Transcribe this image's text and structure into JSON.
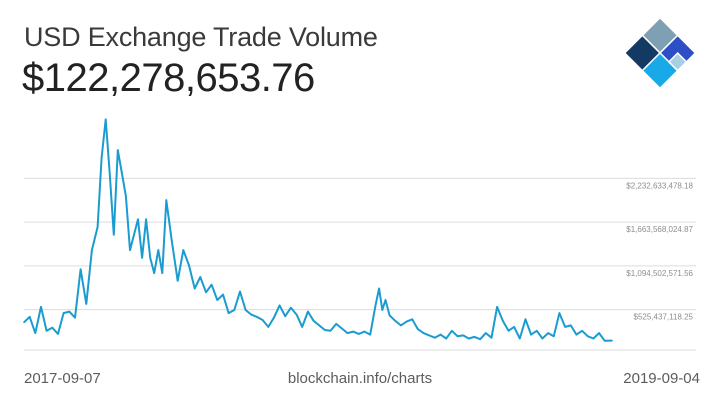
{
  "header": {
    "title": "USD Exchange Trade Volume",
    "current_value": "$122,278,653.76"
  },
  "footer": {
    "start_date": "2017-09-07",
    "source": "blockchain.info/charts",
    "end_date": "2019-09-04"
  },
  "colors": {
    "line": "#1b9cd0",
    "grid": "#dcdcdc",
    "logo_dark": "#123a63",
    "logo_gray": "#7f9fb2",
    "logo_blue": "#2c4fc5",
    "logo_cyan": "#18a9e8",
    "logo_light": "#a8cfe4"
  },
  "logo": {
    "icon": "blockchain-logo-icon"
  },
  "chart_data": {
    "type": "line",
    "title": "USD Exchange Trade Volume",
    "xlabel": "",
    "ylabel": "",
    "x_range": [
      "2017-09-07",
      "2019-09-04"
    ],
    "ylim": [
      0,
      3200000000
    ],
    "grid": true,
    "y_ticks": [
      {
        "value": 525437118.25,
        "label": "$525,437,118.25"
      },
      {
        "value": 1094502571.56,
        "label": "$1,094,502,571.56"
      },
      {
        "value": 1663568024.87,
        "label": "$1,663,568,024.87"
      },
      {
        "value": 2232633478.18,
        "label": "$2,232,633,478.18"
      }
    ],
    "series": [
      {
        "x": [
          "2017-09-07",
          "2017-09-14",
          "2017-09-21",
          "2017-09-28",
          "2017-10-05",
          "2017-10-12",
          "2017-10-19",
          "2017-10-26",
          "2017-11-02",
          "2017-11-09",
          "2017-11-16",
          "2017-11-23",
          "2017-11-30",
          "2017-12-07",
          "2017-12-12",
          "2017-12-17",
          "2017-12-22",
          "2017-12-27",
          "2018-01-01",
          "2018-01-06",
          "2018-01-11",
          "2018-01-16",
          "2018-01-21",
          "2018-01-26",
          "2018-01-31",
          "2018-02-05",
          "2018-02-10",
          "2018-02-15",
          "2018-02-20",
          "2018-02-25",
          "2018-03-02",
          "2018-03-09",
          "2018-03-16",
          "2018-03-23",
          "2018-03-30",
          "2018-04-06",
          "2018-04-13",
          "2018-04-20",
          "2018-04-27",
          "2018-05-04",
          "2018-05-11",
          "2018-05-18",
          "2018-05-25",
          "2018-06-01",
          "2018-06-08",
          "2018-06-15",
          "2018-06-22",
          "2018-06-29",
          "2018-07-06",
          "2018-07-13",
          "2018-07-20",
          "2018-07-27",
          "2018-08-03",
          "2018-08-10",
          "2018-08-17",
          "2018-08-24",
          "2018-08-31",
          "2018-09-07",
          "2018-09-14",
          "2018-09-21",
          "2018-09-28",
          "2018-10-05",
          "2018-10-12",
          "2018-10-19",
          "2018-10-26",
          "2018-11-02",
          "2018-11-09",
          "2018-11-16",
          "2018-11-20",
          "2018-11-24",
          "2018-11-28",
          "2018-12-03",
          "2018-12-10",
          "2018-12-17",
          "2018-12-24",
          "2018-12-31",
          "2019-01-07",
          "2019-01-14",
          "2019-01-21",
          "2019-01-28",
          "2019-02-04",
          "2019-02-11",
          "2019-02-18",
          "2019-02-25",
          "2019-03-04",
          "2019-03-11",
          "2019-03-18",
          "2019-03-25",
          "2019-04-01",
          "2019-04-08",
          "2019-04-15",
          "2019-04-22",
          "2019-04-29",
          "2019-05-06",
          "2019-05-13",
          "2019-05-20",
          "2019-05-27",
          "2019-06-03",
          "2019-06-10",
          "2019-06-17",
          "2019-06-24",
          "2019-07-01",
          "2019-07-08",
          "2019-07-15",
          "2019-07-22",
          "2019-07-29",
          "2019-08-05",
          "2019-08-12",
          "2019-08-19",
          "2019-08-26",
          "2019-09-04"
        ],
        "values": [
          360000000,
          430000000,
          220000000,
          560000000,
          250000000,
          290000000,
          210000000,
          480000000,
          500000000,
          420000000,
          1050000000,
          600000000,
          1300000000,
          1600000000,
          2500000000,
          3000000000,
          2300000000,
          1500000000,
          2600000000,
          2300000000,
          2000000000,
          1300000000,
          1500000000,
          1700000000,
          1200000000,
          1700000000,
          1200000000,
          1000000000,
          1300000000,
          1000000000,
          1950000000,
          1400000000,
          900000000,
          1300000000,
          1100000000,
          800000000,
          950000000,
          750000000,
          850000000,
          650000000,
          720000000,
          480000000,
          520000000,
          760000000,
          520000000,
          460000000,
          430000000,
          390000000,
          300000000,
          420000000,
          580000000,
          440000000,
          550000000,
          460000000,
          300000000,
          500000000,
          380000000,
          320000000,
          260000000,
          250000000,
          340000000,
          280000000,
          220000000,
          240000000,
          210000000,
          240000000,
          200000000,
          600000000,
          800000000,
          520000000,
          650000000,
          450000000,
          380000000,
          320000000,
          370000000,
          400000000,
          270000000,
          220000000,
          190000000,
          160000000,
          200000000,
          150000000,
          250000000,
          180000000,
          190000000,
          150000000,
          170000000,
          140000000,
          220000000,
          160000000,
          560000000,
          380000000,
          250000000,
          300000000,
          150000000,
          400000000,
          200000000,
          250000000,
          150000000,
          220000000,
          180000000,
          480000000,
          300000000,
          320000000,
          200000000,
          250000000,
          180000000,
          150000000,
          220000000,
          120000000,
          122000000
        ]
      }
    ]
  }
}
